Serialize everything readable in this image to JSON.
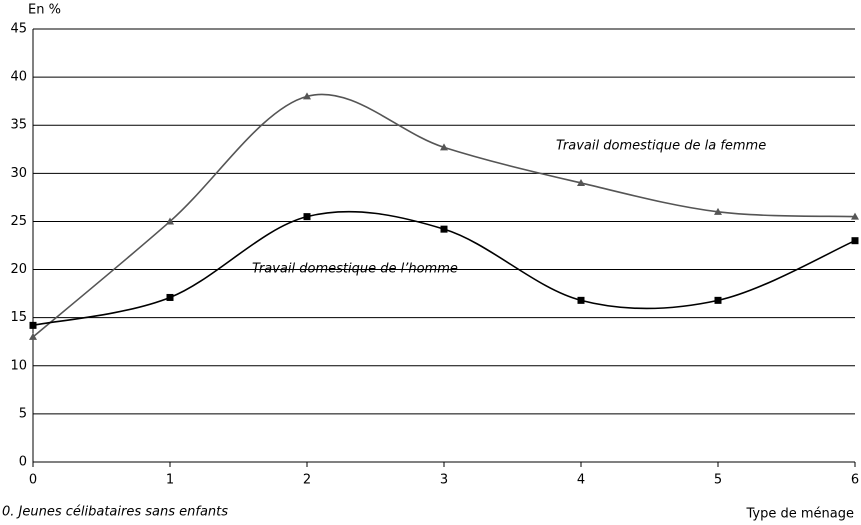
{
  "chart_data": {
    "type": "line",
    "y_label": "En %",
    "x_label": "Type de ménage",
    "footnote": "0. Jeunes célibataires sans enfants",
    "x": [
      0,
      1,
      2,
      3,
      4,
      5,
      6
    ],
    "series": [
      {
        "name": "Travail domestique de la femme",
        "color": "#555555",
        "marker": "triangle",
        "values": [
          13,
          25,
          38,
          32.7,
          29,
          26,
          25.5
        ]
      },
      {
        "name": "Travail domestique de l’homme",
        "color": "#000000",
        "marker": "square",
        "values": [
          14.2,
          17.1,
          25.5,
          24.2,
          16.8,
          16.8,
          23
        ]
      }
    ],
    "xlim": [
      0,
      6
    ],
    "xticks": [
      0,
      1,
      2,
      3,
      4,
      5,
      6
    ],
    "ylim": [
      0,
      45
    ],
    "yticks": [
      0,
      5,
      10,
      15,
      20,
      25,
      30,
      35,
      40,
      45
    ],
    "grid": true,
    "smooth": true
  }
}
